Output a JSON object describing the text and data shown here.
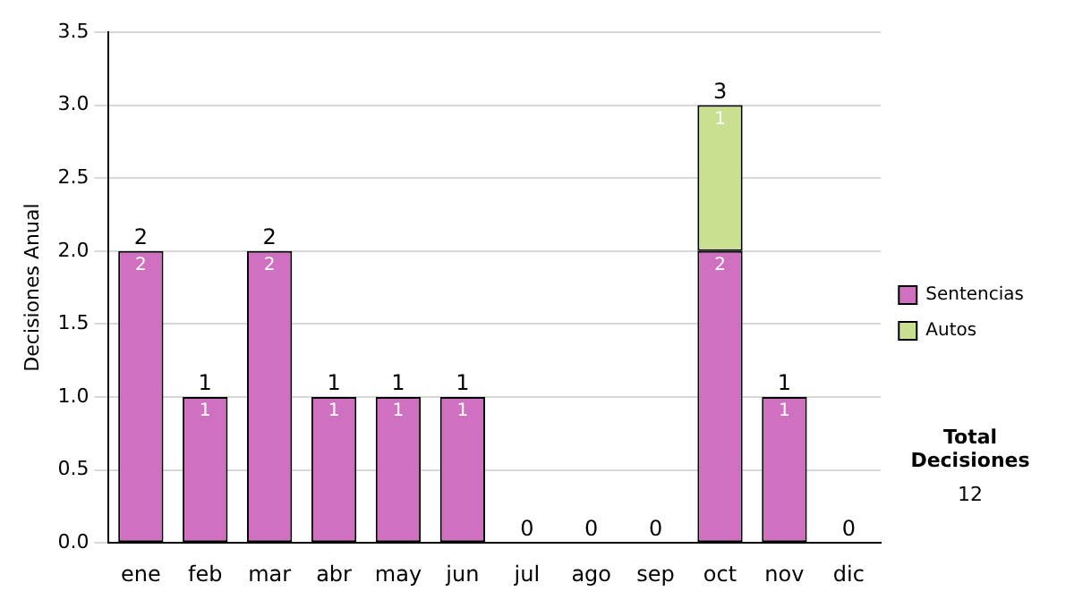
{
  "chart_data": {
    "type": "bar",
    "stacked": true,
    "ylabel": "Decisiones Anual",
    "categories": [
      "ene",
      "feb",
      "mar",
      "abr",
      "may",
      "jun",
      "jul",
      "ago",
      "sep",
      "oct",
      "nov",
      "dic"
    ],
    "series": [
      {
        "name": "Sentencias",
        "color": "#d070c0",
        "values": [
          2,
          1,
          2,
          1,
          1,
          1,
          0,
          0,
          0,
          2,
          1,
          0
        ],
        "value_labels": [
          "2",
          "1",
          "2",
          "1",
          "1",
          "1",
          null,
          null,
          null,
          "2",
          "1",
          null
        ]
      },
      {
        "name": "Autos",
        "color": "#c8e090",
        "values": [
          0,
          0,
          0,
          0,
          0,
          0,
          0,
          0,
          0,
          1,
          0,
          0
        ],
        "value_labels": [
          null,
          null,
          null,
          null,
          null,
          null,
          null,
          null,
          null,
          "1",
          null,
          null
        ]
      }
    ],
    "totals": [
      "2",
      "1",
      "2",
      "1",
      "1",
      "1",
      "0",
      "0",
      "0",
      "3",
      "1",
      "0"
    ],
    "ylim": [
      0,
      3.5
    ],
    "yticks": [
      {
        "value": 0,
        "label": "0.0"
      },
      {
        "value": 0.5,
        "label": "0.5"
      },
      {
        "value": 1,
        "label": "1.0"
      },
      {
        "value": 1.5,
        "label": "1.5"
      },
      {
        "value": 2,
        "label": "2.0"
      },
      {
        "value": 2.5,
        "label": "2.5"
      },
      {
        "value": 3,
        "label": "3.0"
      },
      {
        "value": 3.5,
        "label": "3.5"
      }
    ],
    "grid": "y",
    "legend": "right",
    "annotations": [
      "Total Decisiones",
      "12"
    ]
  }
}
